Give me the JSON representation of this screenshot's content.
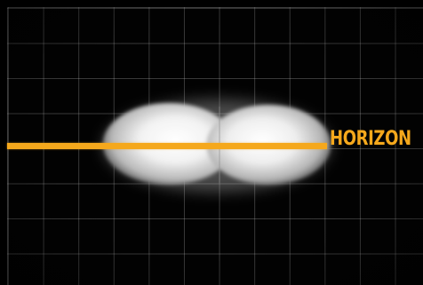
{
  "scene": {
    "background_color": "#000000",
    "grid_color": "#c8c8c8",
    "object_color": "#f2f2f2",
    "object_description": "white-bilobed-cloud"
  },
  "overlay": {
    "label": "HORIZON",
    "accent_color": "#f5a81c"
  }
}
